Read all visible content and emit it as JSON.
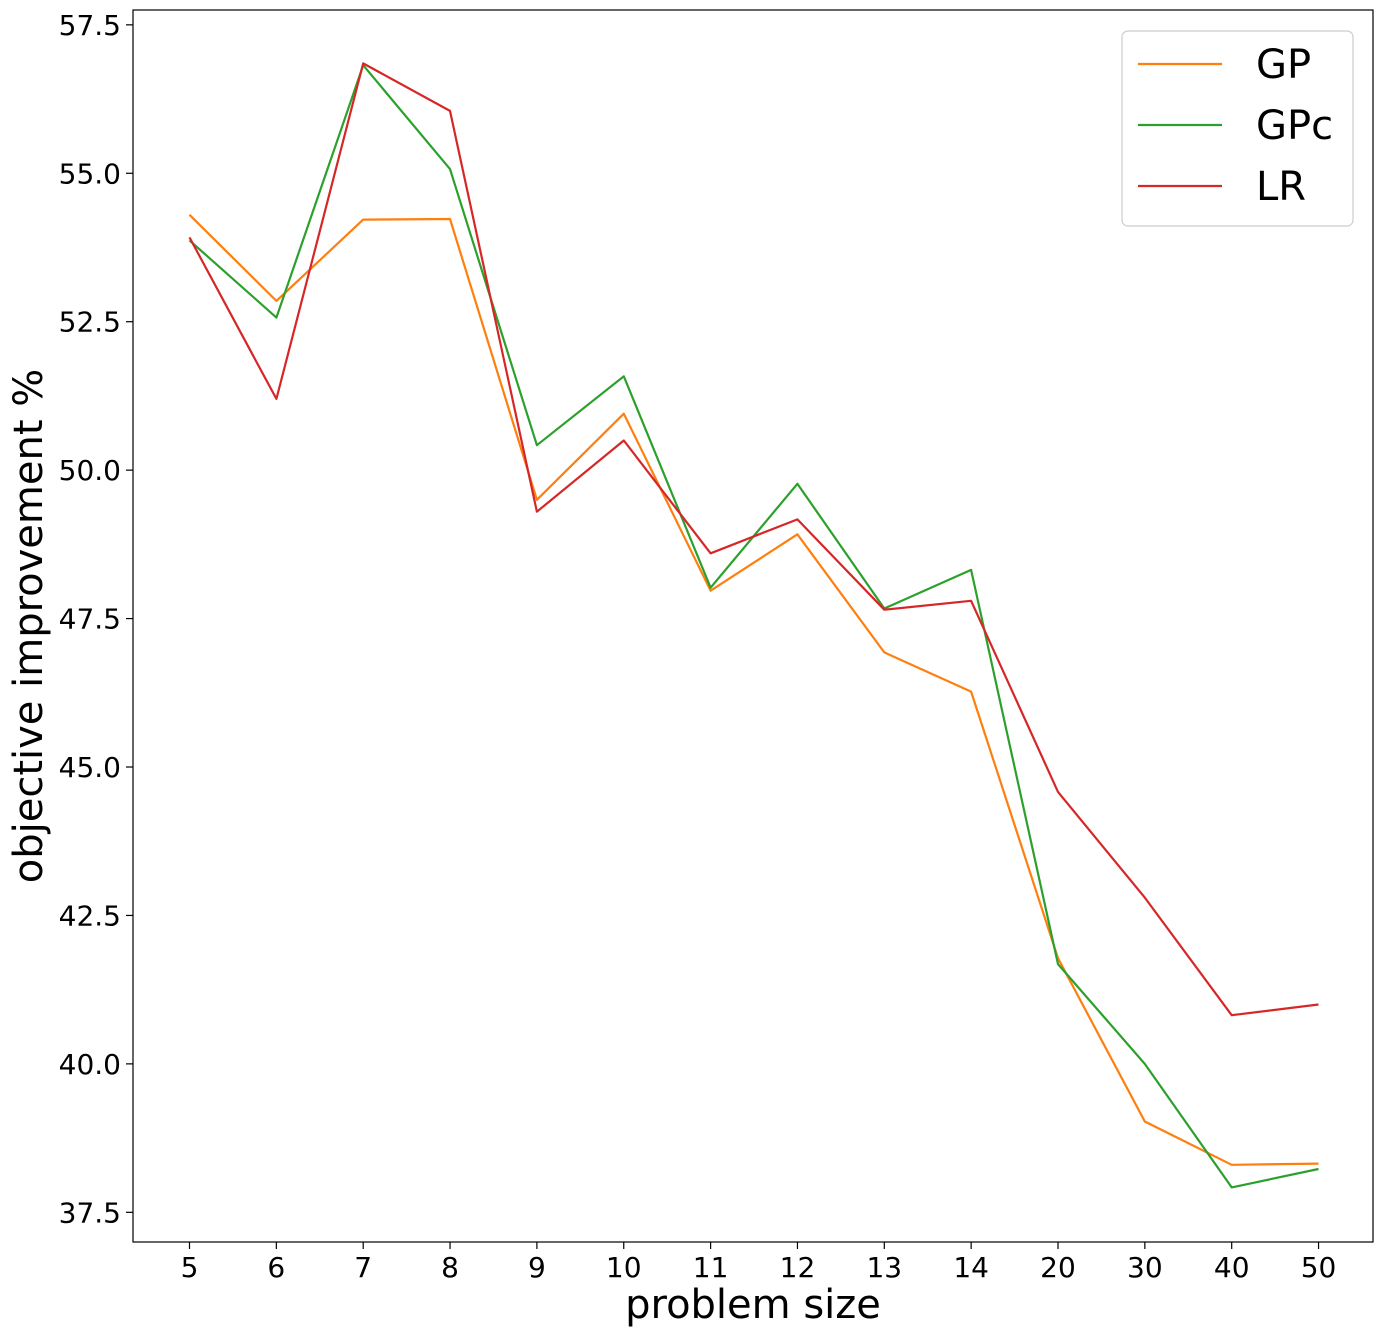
{
  "chart_data": {
    "type": "line",
    "title": "",
    "xlabel": "problem size",
    "ylabel": "objective improvement %",
    "categories": [
      "5",
      "6",
      "7",
      "8",
      "9",
      "10",
      "11",
      "12",
      "13",
      "14",
      "20",
      "30",
      "40",
      "50"
    ],
    "ylim": [
      37.0,
      57.75
    ],
    "yticks": [
      "37.5",
      "40.0",
      "42.5",
      "45.0",
      "47.5",
      "50.0",
      "52.5",
      "55.0",
      "57.5"
    ],
    "grid": false,
    "legend_position": "top-right",
    "series": [
      {
        "name": "GP",
        "color": "#ff7f0e",
        "values": [
          54.3,
          52.85,
          54.22,
          54.23,
          49.5,
          50.95,
          47.97,
          48.92,
          46.93,
          46.27,
          41.78,
          39.03,
          38.3,
          38.32
        ]
      },
      {
        "name": "GPc",
        "color": "#2ca02c",
        "values": [
          53.87,
          52.57,
          56.82,
          55.07,
          50.42,
          51.58,
          48.02,
          49.77,
          47.67,
          48.32,
          41.68,
          40.0,
          37.92,
          38.23
        ]
      },
      {
        "name": "LR",
        "color": "#d62728",
        "values": [
          53.92,
          51.2,
          56.85,
          56.05,
          49.3,
          50.5,
          48.6,
          49.17,
          47.65,
          47.8,
          44.58,
          42.8,
          40.82,
          41.0
        ]
      }
    ]
  }
}
